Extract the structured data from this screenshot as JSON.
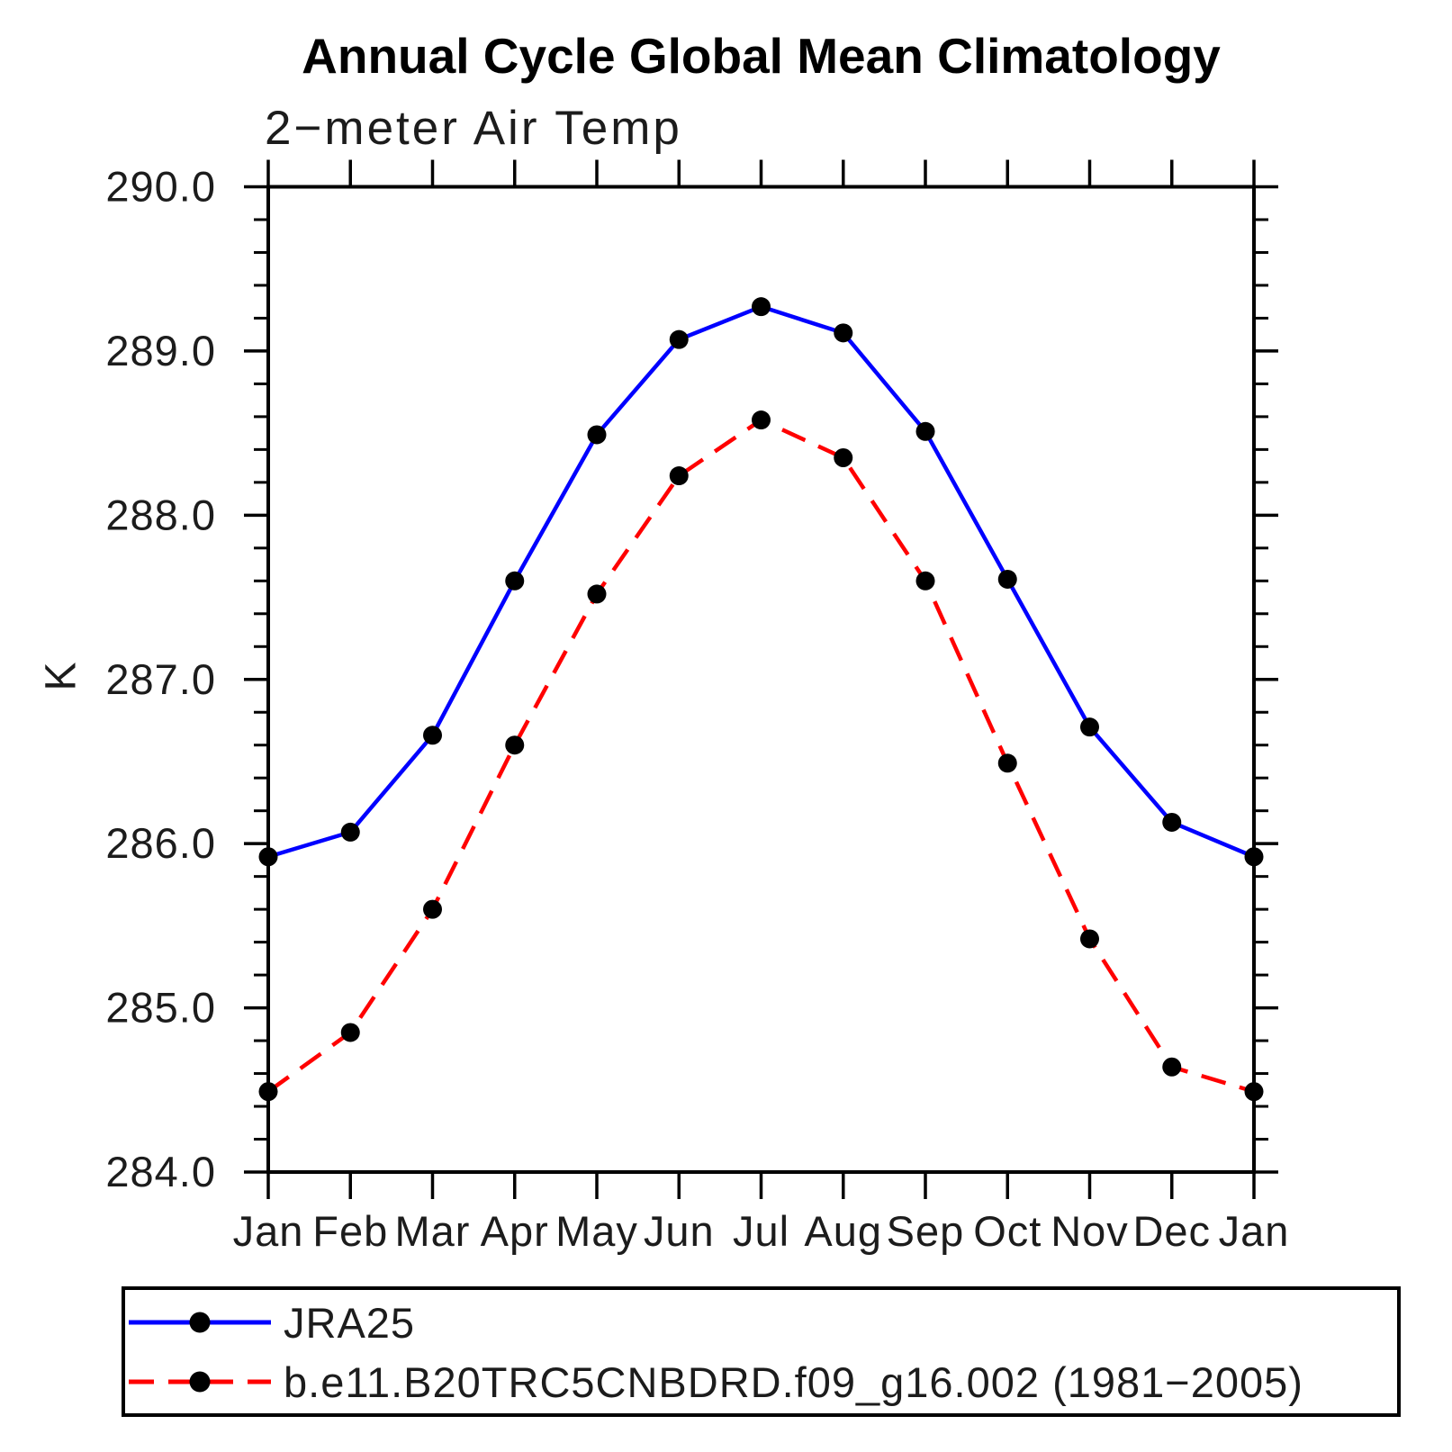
{
  "title": "Annual Cycle Global Mean Climatology",
  "subtitle": "2−meter Air Temp",
  "ylabel": "K",
  "chart_data": {
    "type": "line",
    "title": "Annual Cycle Global Mean Climatology",
    "subtitle": "2−meter Air Temp",
    "xlabel": "",
    "ylabel": "K",
    "x_categories": [
      "Jan",
      "Feb",
      "Mar",
      "Apr",
      "May",
      "Jun",
      "Jul",
      "Aug",
      "Sep",
      "Oct",
      "Nov",
      "Dec",
      "Jan"
    ],
    "ylim": [
      284.0,
      290.0
    ],
    "ytick_major_step": 1.0,
    "ytick_minor_step": 0.2,
    "ytick_labels": [
      "290.0",
      "289.0",
      "288.0",
      "287.0",
      "286.0",
      "285.0",
      "284.0"
    ],
    "grid": "off",
    "legend_position": "bottom-left-box",
    "frame_color": "#000000",
    "marker_color": "#000000",
    "series": [
      {
        "name": "JRA25",
        "color": "#0000ff",
        "line_style": "solid",
        "marker": "circle",
        "values": [
          285.92,
          286.07,
          286.66,
          287.6,
          288.49,
          289.07,
          289.27,
          289.11,
          288.51,
          287.61,
          286.71,
          286.13,
          285.92
        ]
      },
      {
        "name": "b.e11.B20TRC5CNBDRD.f09_g16.002 (1981−2005)",
        "color": "#ff0000",
        "line_style": "dashed",
        "marker": "circle",
        "values": [
          284.49,
          284.85,
          285.6,
          286.6,
          287.52,
          288.24,
          288.58,
          288.35,
          287.6,
          286.49,
          285.42,
          284.64,
          284.49
        ]
      }
    ]
  }
}
